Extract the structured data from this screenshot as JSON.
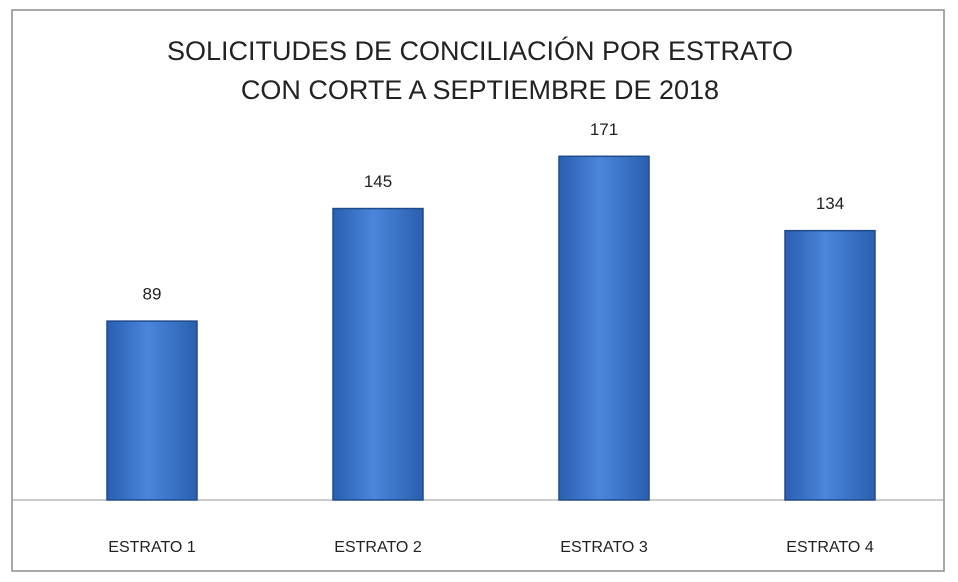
{
  "chart_data": {
    "type": "bar",
    "title": [
      "SOLICITUDES DE CONCILIACIÓN POR ESTRATO",
      "CON CORTE A SEPTIEMBRE DE 2018"
    ],
    "categories": [
      "ESTRATO 1",
      "ESTRATO 2",
      "ESTRATO 3",
      "ESTRATO 4"
    ],
    "values": [
      89,
      145,
      171,
      134
    ],
    "color": "#3d78d0",
    "ylim": [
      0,
      200
    ]
  }
}
